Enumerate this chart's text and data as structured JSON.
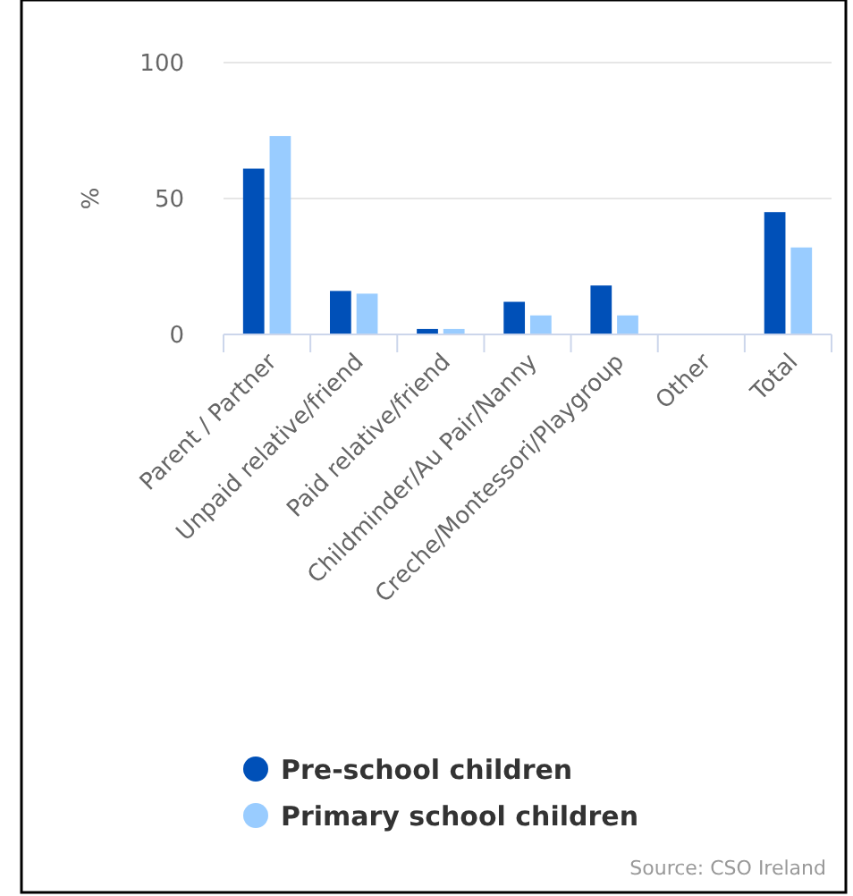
{
  "chart_data": {
    "type": "bar",
    "ylabel": "%",
    "categories": [
      "Parent / Partner",
      "Unpaid relative/friend",
      "Paid relative/friend",
      "Childminder/Au Pair/Nanny",
      "Creche/Montessori/Playgroup",
      "Other",
      "Total"
    ],
    "series": [
      {
        "name": "Pre-school children",
        "color": "#0050b8",
        "values": [
          61,
          16,
          2,
          12,
          18,
          0,
          45
        ]
      },
      {
        "name": "Primary school children",
        "color": "#99ccff",
        "values": [
          73,
          15,
          2,
          7,
          7,
          0,
          32
        ]
      }
    ],
    "ylim": [
      0,
      100
    ],
    "yticks": [
      0,
      50,
      100
    ],
    "grid": "y",
    "legend": "bottom",
    "annotations": [
      "Source: CSO Ireland"
    ]
  }
}
